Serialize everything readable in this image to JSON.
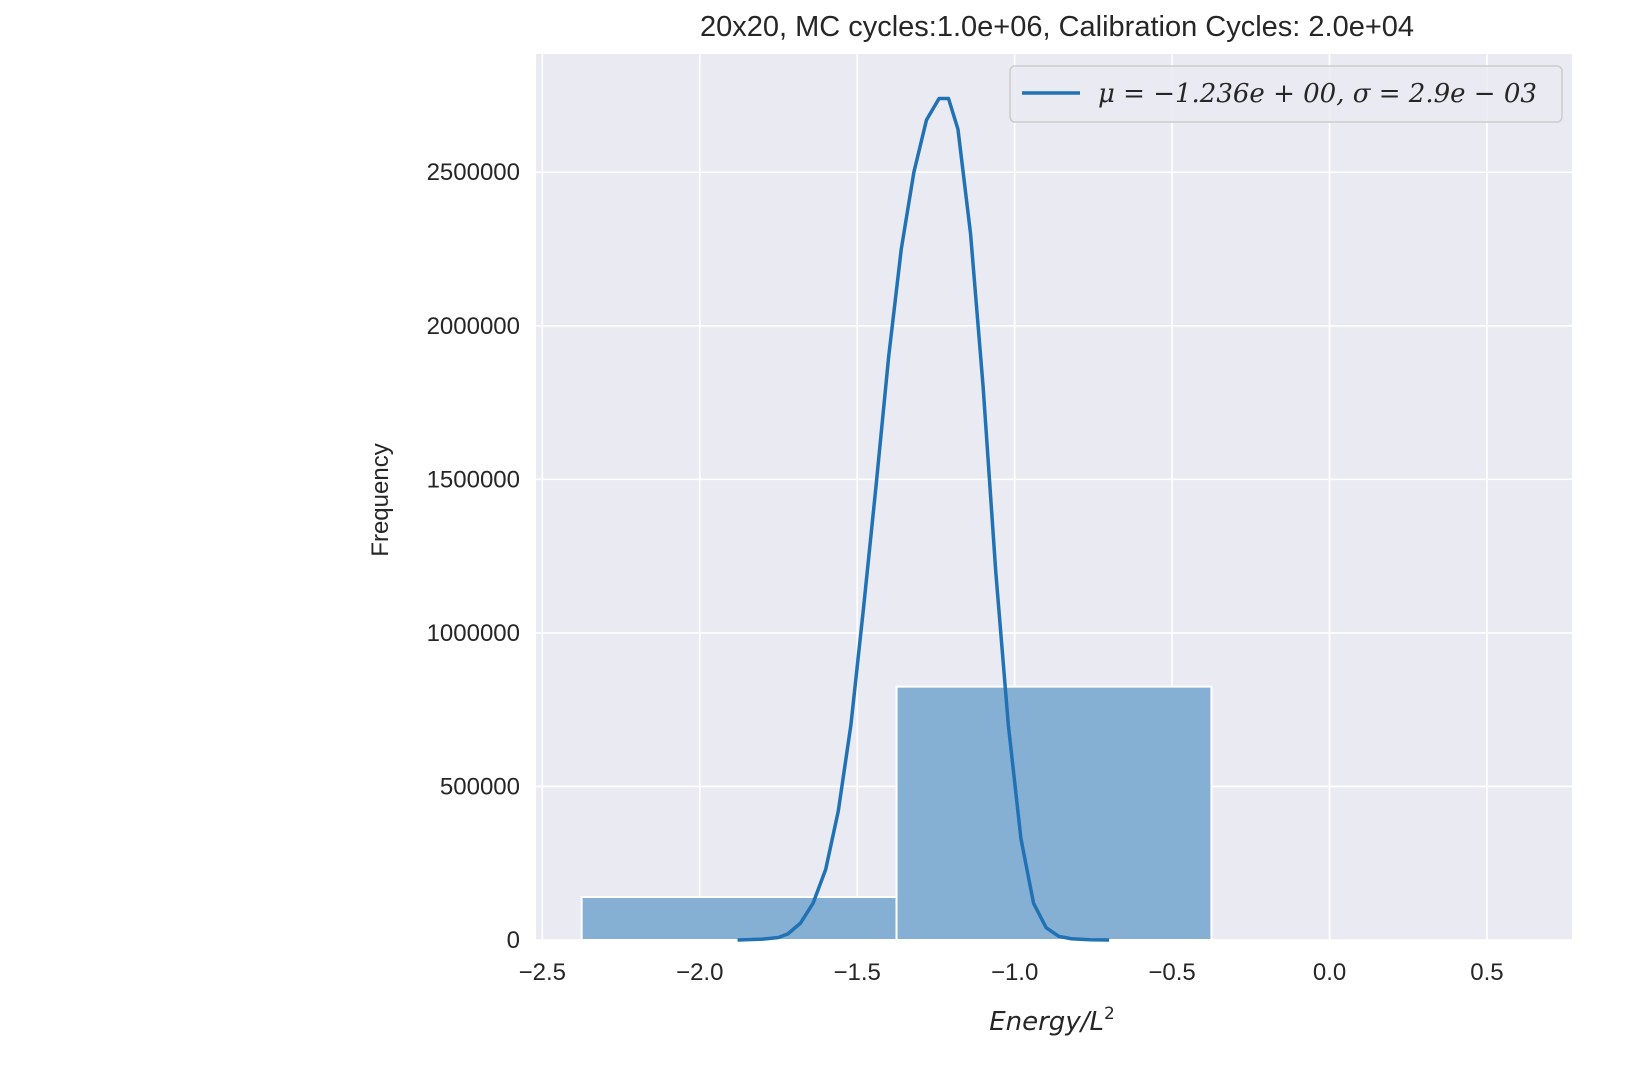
{
  "chart_data": {
    "type": "bar",
    "title": "20x20, MC cycles:1.0e+06, Calibration Cycles: 2.0e+04",
    "xlabel": "Energy/L",
    "xlabel_superscript": "2",
    "ylabel": "Frequency",
    "xlim": [
      -2.52,
      0.77
    ],
    "ylim": [
      0,
      2885000
    ],
    "grid": true,
    "legend_position": "top-right",
    "x_ticks": [
      -2.5,
      -2.0,
      -1.5,
      -1.0,
      -0.5,
      0.0,
      0.5
    ],
    "x_tick_labels": [
      "−2.5",
      "−2.0",
      "−1.5",
      "−1.0",
      "−0.5",
      "0.0",
      "0.5"
    ],
    "y_ticks": [
      0,
      500000,
      1000000,
      1500000,
      2000000,
      2500000
    ],
    "y_tick_labels": [
      "0",
      "500000",
      "1000000",
      "1500000",
      "2000000",
      "2500000"
    ],
    "bars": [
      {
        "x_start": -2.375,
        "x_end": -1.375,
        "value": 140000
      },
      {
        "x_start": -1.375,
        "x_end": -0.375,
        "value": 825000
      }
    ],
    "series": [
      {
        "name": "μ = −1.236e + 00, σ = 2.9e − 03",
        "type": "line",
        "x": [
          -1.88,
          -1.8,
          -1.75,
          -1.72,
          -1.68,
          -1.64,
          -1.6,
          -1.56,
          -1.52,
          -1.48,
          -1.44,
          -1.4,
          -1.36,
          -1.32,
          -1.28,
          -1.24,
          -1.21,
          -1.18,
          -1.14,
          -1.1,
          -1.06,
          -1.02,
          -0.98,
          -0.94,
          -0.9,
          -0.86,
          -0.82,
          -0.76,
          -0.7
        ],
        "y": [
          0,
          3000,
          8000,
          20000,
          55000,
          120000,
          230000,
          420000,
          700000,
          1080000,
          1480000,
          1900000,
          2250000,
          2500000,
          2670000,
          2740000,
          2740000,
          2640000,
          2300000,
          1800000,
          1200000,
          700000,
          330000,
          120000,
          40000,
          12000,
          4000,
          1000,
          0
        ],
        "color": "#2172b4"
      }
    ],
    "colors": {
      "plot_background": "#eaeaf2",
      "grid": "#ffffff",
      "bar_fill": "#85b0d3",
      "line": "#2172b4",
      "text": "#262626"
    }
  }
}
